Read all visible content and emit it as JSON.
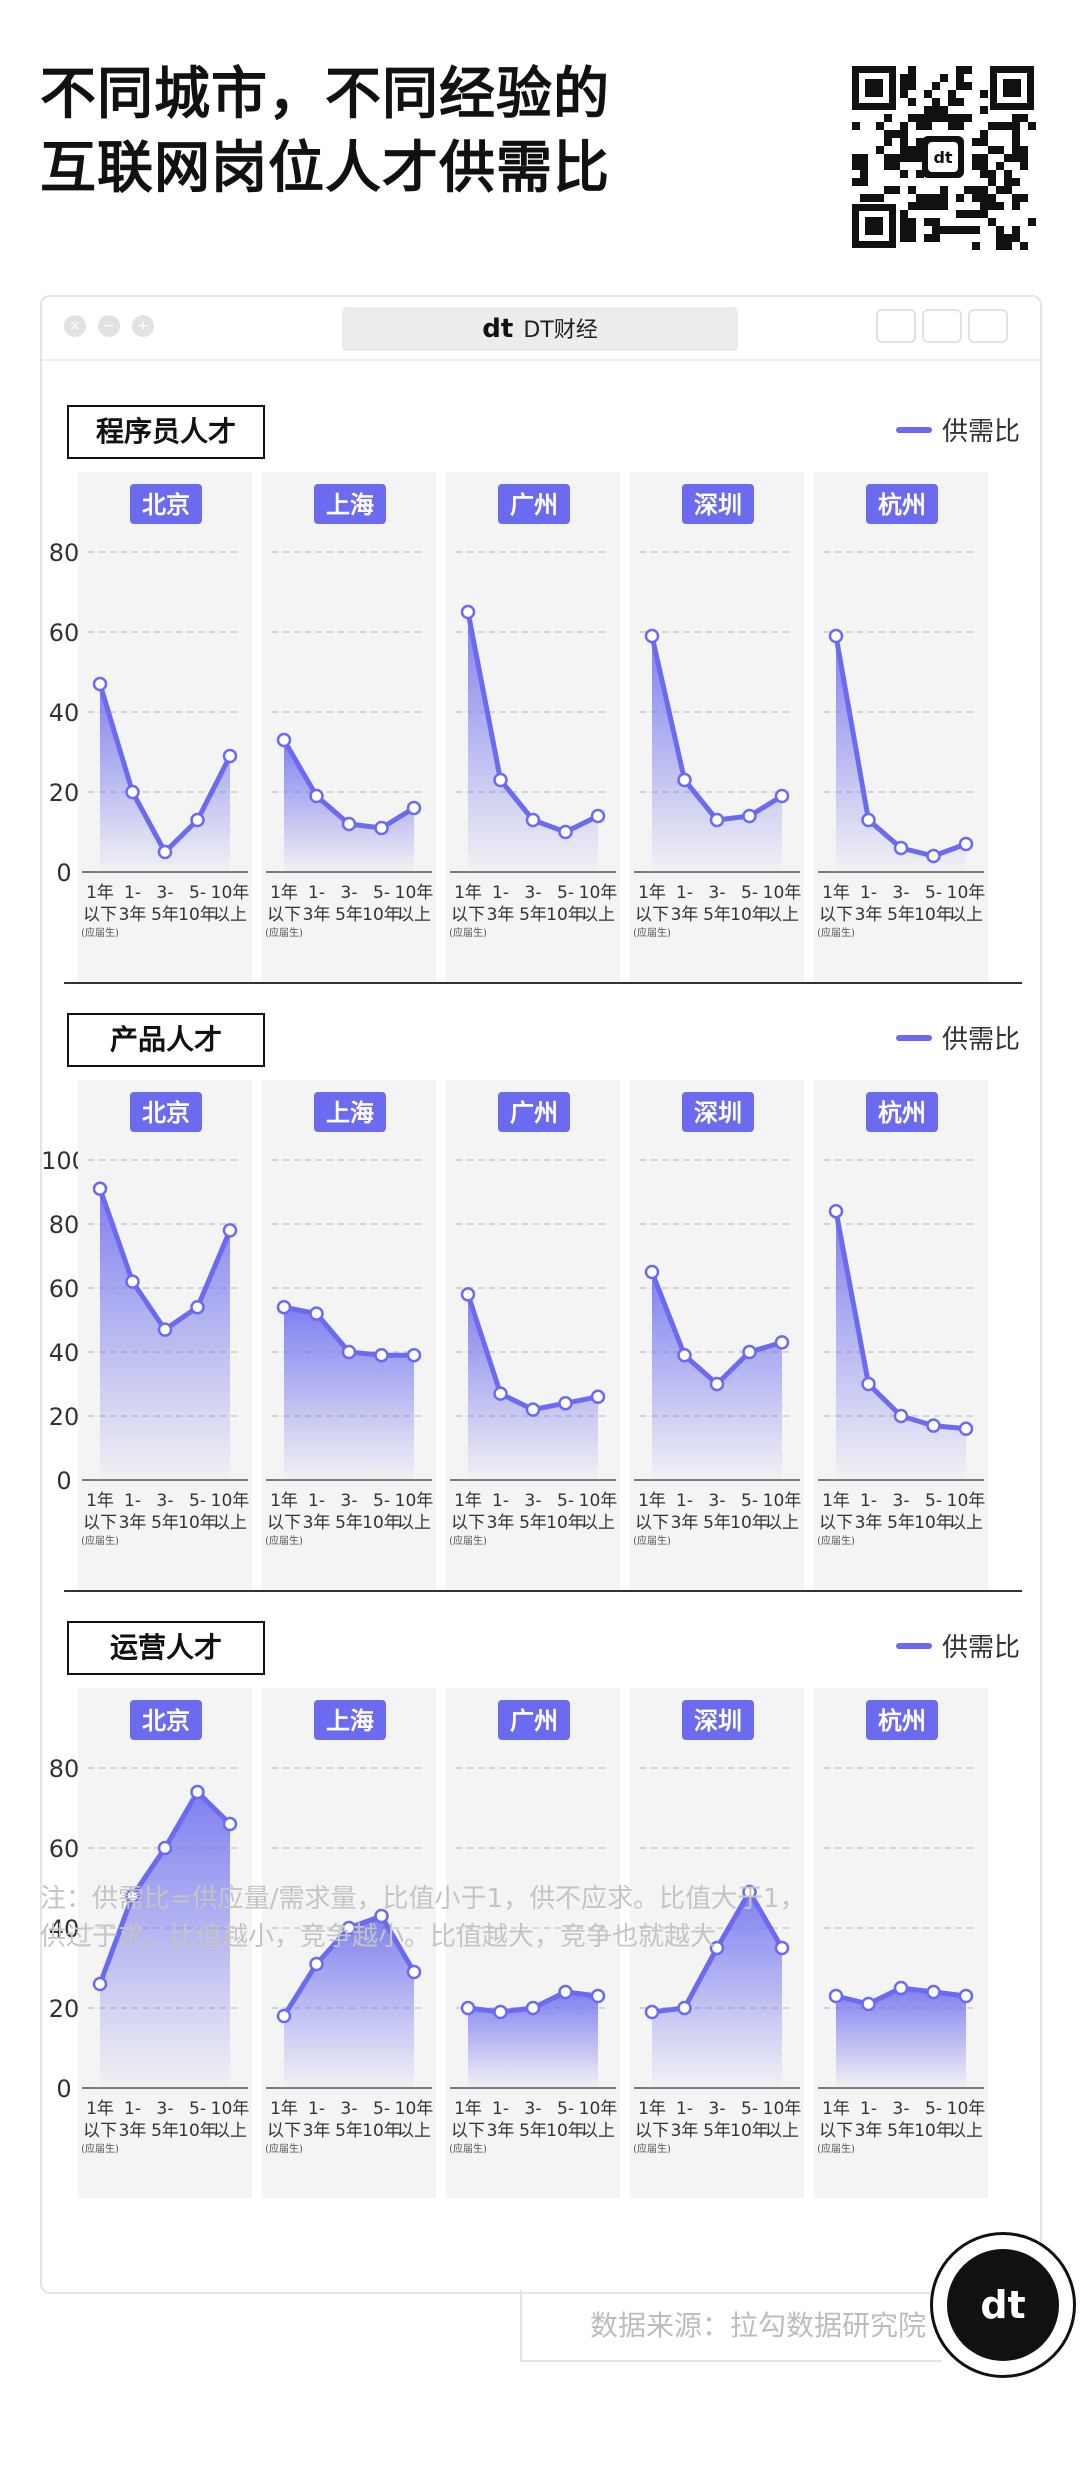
{
  "title": {
    "line1": "不同城市，不同经验的",
    "line2": "互联网岗位人才供需比"
  },
  "window": {
    "app_name": "DT财经",
    "logo": "dt"
  },
  "legend_label": "供需比",
  "note": {
    "line1": "注：供需比=供应量/需求量，比值小于1，供不应求。比值大于1，",
    "line2": "供过于求。比值越小，竞争越小。比值越大，竞争也就越大"
  },
  "source": "数据来源：拉勾数据研究院",
  "badge_logo": "dt",
  "colors": {
    "line": "#6b6bf0",
    "tag": "#6b6bf0",
    "panel_bg": "#f4f4f4"
  },
  "x_ticks": [
    {
      "l1": "1年",
      "l2": "以下",
      "l3": "(应届生)"
    },
    {
      "l1": "1-",
      "l2": "3年",
      "l3": ""
    },
    {
      "l1": "3-",
      "l2": "5年",
      "l3": ""
    },
    {
      "l1": "5-",
      "l2": "10年",
      "l3": ""
    },
    {
      "l1": "10年",
      "l2": "以上",
      "l3": ""
    }
  ],
  "chart_data": [
    {
      "type": "area",
      "title": "程序员人才",
      "ylim": [
        0,
        80
      ],
      "yticks": [
        0,
        20,
        40,
        60,
        80
      ],
      "categories": [
        "1年以下(应届生)",
        "1-3年",
        "3-5年",
        "5-10年",
        "10年以上"
      ],
      "series": [
        {
          "name": "北京",
          "values": [
            47,
            20,
            5,
            13,
            29
          ]
        },
        {
          "name": "上海",
          "values": [
            33,
            19,
            12,
            11,
            16
          ]
        },
        {
          "name": "广州",
          "values": [
            65,
            23,
            13,
            10,
            14
          ]
        },
        {
          "name": "深圳",
          "values": [
            59,
            23,
            13,
            14,
            19
          ]
        },
        {
          "name": "杭州",
          "values": [
            59,
            13,
            6,
            4,
            7
          ]
        }
      ]
    },
    {
      "type": "area",
      "title": "产品人才",
      "ylim": [
        0,
        100
      ],
      "yticks": [
        0,
        20,
        40,
        60,
        80,
        100
      ],
      "categories": [
        "1年以下(应届生)",
        "1-3年",
        "3-5年",
        "5-10年",
        "10年以上"
      ],
      "series": [
        {
          "name": "北京",
          "values": [
            91,
            62,
            47,
            54,
            78
          ]
        },
        {
          "name": "上海",
          "values": [
            54,
            52,
            40,
            39,
            39
          ]
        },
        {
          "name": "广州",
          "values": [
            58,
            27,
            22,
            24,
            26
          ]
        },
        {
          "name": "深圳",
          "values": [
            65,
            39,
            30,
            40,
            43
          ]
        },
        {
          "name": "杭州",
          "values": [
            84,
            30,
            20,
            17,
            16
          ]
        }
      ]
    },
    {
      "type": "area",
      "title": "运营人才",
      "ylim": [
        0,
        80
      ],
      "yticks": [
        0,
        20,
        40,
        60,
        80
      ],
      "categories": [
        "1年以下(应届生)",
        "1-3年",
        "3-5年",
        "5-10年",
        "10年以上"
      ],
      "series": [
        {
          "name": "北京",
          "values": [
            26,
            48,
            60,
            74,
            66
          ]
        },
        {
          "name": "上海",
          "values": [
            18,
            31,
            40,
            43,
            29
          ]
        },
        {
          "name": "广州",
          "values": [
            20,
            19,
            20,
            24,
            23
          ]
        },
        {
          "name": "深圳",
          "values": [
            19,
            20,
            35,
            49,
            35
          ]
        },
        {
          "name": "杭州",
          "values": [
            23,
            21,
            25,
            24,
            23
          ]
        }
      ]
    }
  ]
}
